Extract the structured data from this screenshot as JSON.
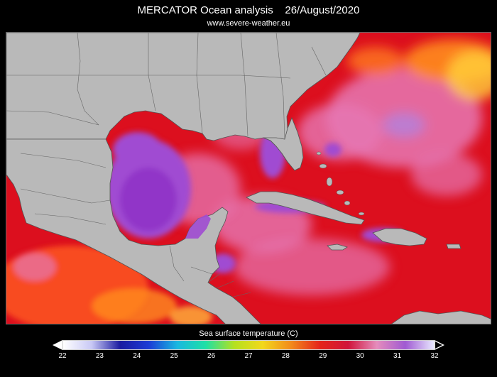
{
  "header": {
    "title": "MERCATOR Ocean analysis    26/August/2020",
    "subtitle": "www.severe-weather.eu"
  },
  "colorbar": {
    "label": "Sea surface temperature (C)",
    "ticks": [
      "22",
      "23",
      "24",
      "25",
      "26",
      "27",
      "28",
      "29",
      "30",
      "31",
      "32"
    ],
    "extend_left_color": "#ffffff",
    "extend_right_color": "#000000",
    "stops": [
      "#ffffff",
      "#c8c8f5",
      "#1a1aa0",
      "#1c3cd6",
      "#19b8e0",
      "#1fe0a5",
      "#b5e11f",
      "#f2d81a",
      "#f28a1a",
      "#e5251a",
      "#d0153a",
      "#e58cbc",
      "#a05ad2",
      "#e8e8ff"
    ]
  },
  "map": {
    "land_color": "#b9b9b9",
    "border_color": "#555555",
    "ocean_colors": {
      "warm_red": "#e0101e",
      "hot_pink": "#e678b4",
      "purple": "#a04bd2",
      "orange": "#ff8c1e",
      "yellow": "#ffd23c"
    }
  }
}
